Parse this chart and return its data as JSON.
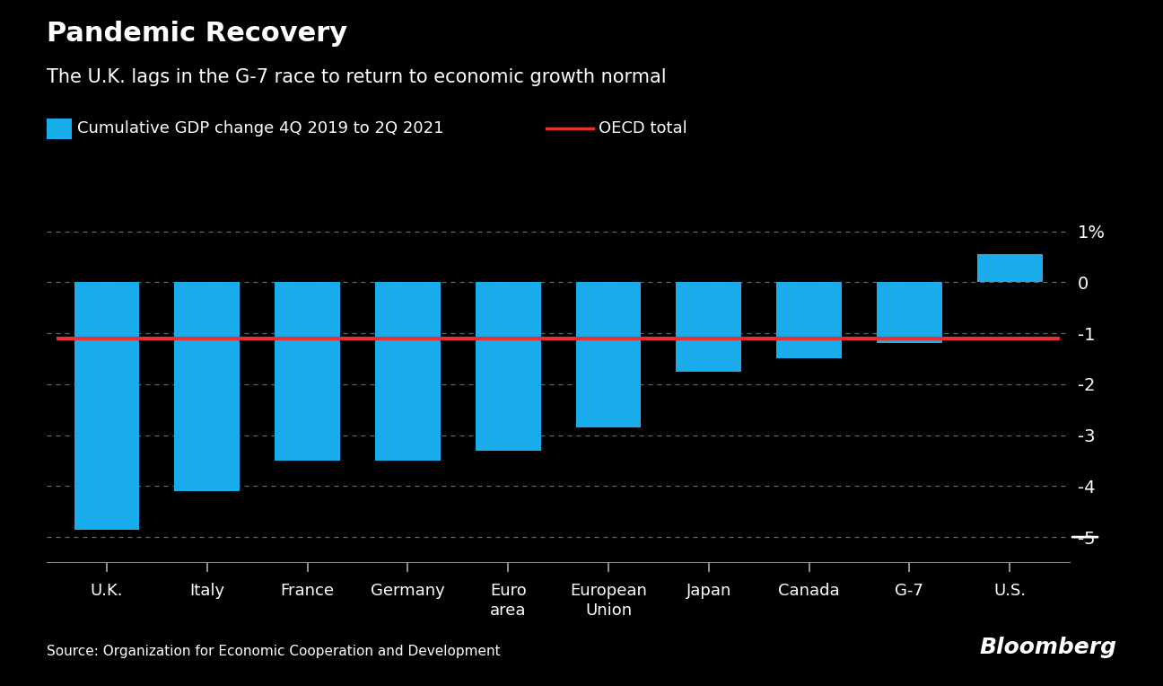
{
  "title_bold": "Pandemic Recovery",
  "title_sub": "The U.K. lags in the G-7 race to return to economic growth normal",
  "legend_bar_label": "Cumulative GDP change 4Q 2019 to 2Q 2021",
  "legend_line_label": "OECD total",
  "source": "Source: Organization for Economic Cooperation and Development",
  "bloomberg": "Bloomberg",
  "categories": [
    "U.K.",
    "Italy",
    "France",
    "Germany",
    "Euro\narea",
    "European\nUnion",
    "Japan",
    "Canada",
    "G-7",
    "U.S."
  ],
  "values": [
    -4.85,
    -4.1,
    -3.5,
    -3.5,
    -3.3,
    -2.85,
    -1.75,
    -1.5,
    -1.2,
    0.55
  ],
  "oecd_value": -1.1,
  "bar_color": "#1AABEB",
  "oecd_color": "#E83030",
  "background_color": "#000000",
  "text_color": "#FFFFFF",
  "grid_color": "#666666",
  "axis_color": "#888888",
  "ylim": [
    -5.5,
    1.5
  ],
  "yticks": [
    1,
    0,
    -1,
    -2,
    -3,
    -4,
    -5
  ],
  "ytick_labels": [
    "1%",
    "0",
    "-1",
    "-2",
    "-3",
    "-4",
    "-5"
  ]
}
